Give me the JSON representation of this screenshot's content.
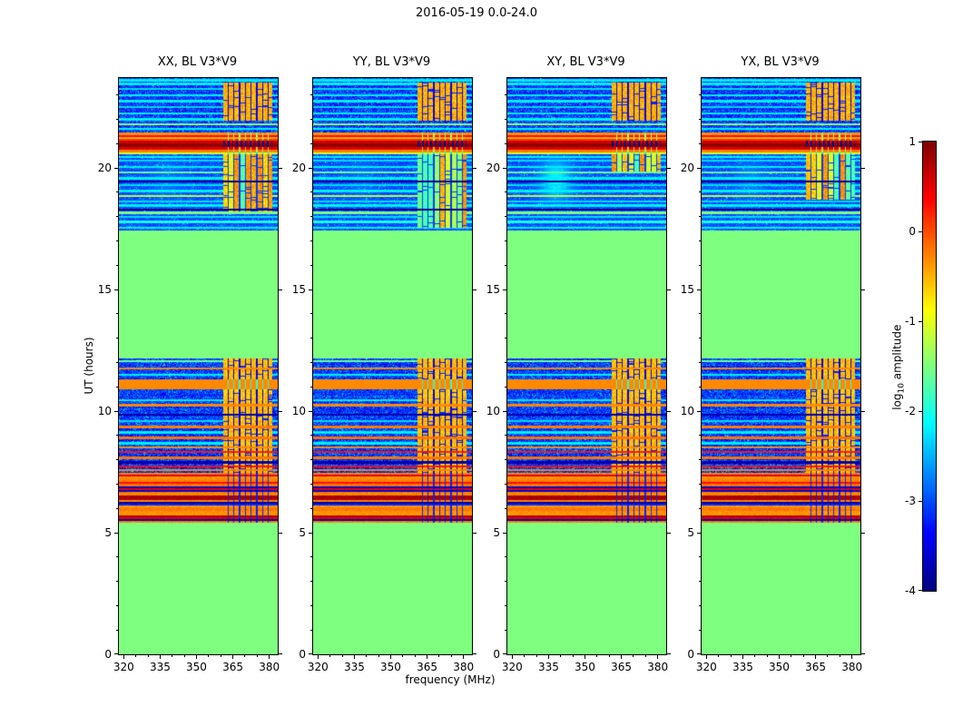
{
  "chart_data": {
    "type": "heatmap",
    "title": "2016-05-19 0.0-24.0",
    "xlabel": "frequency (MHz)",
    "ylabel": "UT (hours)",
    "colormap": "jet",
    "x_range": [
      318,
      383.5
    ],
    "y_range": [
      0,
      23.7
    ],
    "x_ticks": [
      320,
      335,
      350,
      365,
      380
    ],
    "x_minor_step": 5,
    "y_ticks": [
      0,
      5,
      10,
      15,
      20
    ],
    "y_minor_step": 1,
    "colorbar": {
      "label_log": "log",
      "label_sub": "10",
      "label_rest": " amplitude",
      "ticks": [
        1,
        0,
        -1,
        -2,
        -3,
        -4
      ],
      "vmin": -4,
      "vmax": 1
    },
    "panels": [
      {
        "title": "XX, BL V3*V9",
        "seed": 101,
        "upper_stripe_start": 18.2,
        "blob_gain": 0.3
      },
      {
        "title": "YY, BL V3*V9",
        "seed": 202,
        "upper_stripe_start": 17.55,
        "blob_gain": 0.25
      },
      {
        "title": "XY, BL V3*V9",
        "seed": 303,
        "upper_stripe_start": 19.85,
        "blob_gain": 0.9
      },
      {
        "title": "YX, BL V3*V9",
        "seed": 404,
        "upper_stripe_start": 18.7,
        "blob_gain": 0.35
      }
    ],
    "features": {
      "background_value": -1.5,
      "noise_base": -3.1,
      "noise_amp": 1.0,
      "row_flicker": 0.3,
      "speckle_prob": 0.02,
      "line_halfwidth": 0.045,
      "stripe_zone": {
        "f0": 361,
        "f1": 381.2,
        "cell": 2.35,
        "gap": 0.5
      },
      "stripe_dash_prob": 0.07,
      "top_patch": [
        21.95,
        23.5
      ],
      "dash_period": 1.8,
      "dash_gap": 0.7,
      "rfi_row_height": 0.08,
      "rfi_row_palette": [
        -0.3,
        0.4,
        -0.25,
        -3.6,
        0.8,
        -0.3,
        -3.2,
        0.5,
        -0.2,
        -3.8,
        0.3,
        -0.35
      ],
      "blob": {
        "f": 338,
        "fw": 7,
        "h": 19.5,
        "hw": 0.85,
        "amp": 1.1
      },
      "regions": [
        {
          "y0": 0.0,
          "y1": 5.4,
          "kind": "flat",
          "v": -1.5
        },
        {
          "y0": 5.4,
          "y1": 7.45,
          "kind": "rfi_rows"
        },
        {
          "y0": 7.45,
          "y1": 10.55,
          "kind": "noise",
          "stripes": "all",
          "stripe_v": -0.55,
          "lines": "lower"
        },
        {
          "y0": 10.55,
          "y1": 10.9,
          "kind": "noise",
          "stripes": "all",
          "stripe_v": -0.6,
          "lines": "none"
        },
        {
          "y0": 10.9,
          "y1": 11.3,
          "kind": "flat",
          "v": -0.3,
          "gap_dim": true
        },
        {
          "y0": 11.3,
          "y1": 12.15,
          "kind": "noise",
          "stripes": "all",
          "stripe_v": -0.55,
          "lines": "mid"
        },
        {
          "y0": 12.15,
          "y1": 17.42,
          "kind": "flat",
          "v": -1.5
        },
        {
          "y0": 17.42,
          "y1": 20.55,
          "kind": "noise",
          "stripes": "upper",
          "stripe_v": -1.0,
          "lines": "upper",
          "blob": true
        },
        {
          "y0": 20.55,
          "y1": 21.45,
          "kind": "rfi_strong"
        },
        {
          "y0": 21.45,
          "y1": 23.7,
          "kind": "noise",
          "stripes": "top",
          "stripe_v": -0.5,
          "lines": "top"
        }
      ],
      "lines": {
        "none": [],
        "lower": [
          {
            "y": 7.58,
            "v": -0.25
          },
          {
            "y": 7.72,
            "v": 0.3
          },
          {
            "y": 7.9,
            "v": -3.8
          },
          {
            "y": 8.08,
            "v": -0.2
          },
          {
            "y": 8.32,
            "v": 0.25
          },
          {
            "y": 8.5,
            "v": -0.3
          },
          {
            "y": 8.68,
            "v": -2.2
          },
          {
            "y": 8.9,
            "v": -0.2
          },
          {
            "y": 9.12,
            "v": -2.2
          },
          {
            "y": 9.35,
            "v": -0.25
          },
          {
            "y": 9.6,
            "v": -2.3
          },
          {
            "y": 9.85,
            "v": -3.8
          },
          {
            "y": 10.25,
            "v": -0.3
          },
          {
            "y": 10.45,
            "v": -2.2
          }
        ],
        "mid": [
          {
            "y": 11.5,
            "v": -2.2
          },
          {
            "y": 11.75,
            "v": -0.3
          },
          {
            "y": 12.05,
            "v": -1.6
          }
        ],
        "upper": [
          {
            "y": 17.55,
            "v": -2.2
          },
          {
            "y": 17.78,
            "v": -2.0
          },
          {
            "y": 17.98,
            "v": -2.3
          },
          {
            "y": 18.15,
            "v": -1.5
          },
          {
            "y": 18.28,
            "v": -3.9
          },
          {
            "y": 18.45,
            "v": -2.2
          },
          {
            "y": 18.62,
            "v": -2.3
          },
          {
            "y": 18.85,
            "v": -1.2
          },
          {
            "y": 19.05,
            "v": -2.2
          },
          {
            "y": 19.3,
            "v": -2.3
          },
          {
            "y": 19.45,
            "v": -3.9
          },
          {
            "y": 19.58,
            "v": -2.2
          },
          {
            "y": 19.82,
            "v": -1.6
          },
          {
            "y": 20.05,
            "v": -2.2
          },
          {
            "y": 20.3,
            "v": -2.3
          },
          {
            "y": 20.45,
            "v": -2.2
          }
        ],
        "top": [
          {
            "y": 21.6,
            "v": -2.2
          },
          {
            "y": 21.8,
            "v": -1.4
          },
          {
            "y": 22.0,
            "v": -2.2
          },
          {
            "y": 22.25,
            "v": -2.2
          },
          {
            "y": 22.5,
            "v": -2.3
          },
          {
            "y": 22.75,
            "v": -2.2
          },
          {
            "y": 23.0,
            "v": -2.2
          },
          {
            "y": 23.25,
            "v": -2.3
          },
          {
            "y": 23.45,
            "v": -2.2
          },
          {
            "y": 23.6,
            "v": -2.2
          }
        ]
      },
      "rfi_bands": [
        {
          "y0": 20.55,
          "y1": 20.63,
          "v": -1.1,
          "dashed": false
        },
        {
          "y0": 20.63,
          "y1": 20.75,
          "v": -0.25,
          "dashed": false
        },
        {
          "y0": 20.75,
          "y1": 20.87,
          "v": 0.55,
          "dashed": false
        },
        {
          "y0": 20.87,
          "y1": 21.01,
          "v": 0.92,
          "dashed": true
        },
        {
          "y0": 21.01,
          "y1": 21.11,
          "v": 0.6,
          "dashed": true
        },
        {
          "y0": 21.11,
          "y1": 21.21,
          "v": 0.1,
          "dashed": false
        },
        {
          "y0": 21.21,
          "y1": 21.27,
          "v": -0.5,
          "dashed": false
        },
        {
          "y0": 21.27,
          "y1": 21.35,
          "v": 0.35,
          "dashed": false
        },
        {
          "y0": 21.35,
          "y1": 21.45,
          "v": -0.35,
          "dashed": false
        }
      ]
    }
  }
}
